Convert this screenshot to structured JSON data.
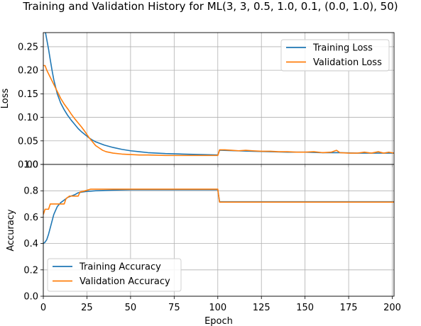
{
  "chart_data": [
    {
      "type": "line",
      "title": "Training and Validation History for ML(3, 3, 0.5, 1.0, 0.1, (0.0, 1.0), 50)",
      "xlabel": "",
      "ylabel": "Loss",
      "xlim": [
        0,
        201
      ],
      "ylim": [
        0.0,
        0.28
      ],
      "xticks": [
        0,
        25,
        50,
        75,
        100,
        125,
        150,
        175,
        200
      ],
      "yticks": [
        0.0,
        0.05,
        0.1,
        0.15,
        0.2,
        0.25
      ],
      "ytick_labels": [
        "0.00",
        "0.05",
        "0.10",
        "0.15",
        "0.20",
        "0.25"
      ],
      "grid": true,
      "legend_position": "top-right",
      "series": [
        {
          "name": "Training Loss",
          "color": "#1f77b4",
          "points": [
            [
              0,
              0.295
            ],
            [
              1,
              0.285
            ],
            [
              2,
              0.265
            ],
            [
              3,
              0.245
            ],
            [
              4,
              0.222
            ],
            [
              5,
              0.2
            ],
            [
              6,
              0.18
            ],
            [
              7,
              0.165
            ],
            [
              8,
              0.15
            ],
            [
              10,
              0.13
            ],
            [
              12,
              0.116
            ],
            [
              14,
              0.104
            ],
            [
              16,
              0.094
            ],
            [
              18,
              0.085
            ],
            [
              20,
              0.076
            ],
            [
              22,
              0.069
            ],
            [
              24,
              0.063
            ],
            [
              26,
              0.057
            ],
            [
              28,
              0.052
            ],
            [
              30,
              0.048
            ],
            [
              35,
              0.041
            ],
            [
              40,
              0.036
            ],
            [
              45,
              0.032
            ],
            [
              50,
              0.029
            ],
            [
              55,
              0.027
            ],
            [
              60,
              0.025
            ],
            [
              70,
              0.023
            ],
            [
              80,
              0.022
            ],
            [
              90,
              0.021
            ],
            [
              100,
              0.02
            ],
            [
              101,
              0.03
            ],
            [
              102,
              0.03
            ],
            [
              110,
              0.029
            ],
            [
              120,
              0.028
            ],
            [
              130,
              0.027
            ],
            [
              140,
              0.026
            ],
            [
              150,
              0.026
            ],
            [
              160,
              0.025
            ],
            [
              170,
              0.025
            ],
            [
              180,
              0.024
            ],
            [
              190,
              0.024
            ],
            [
              201,
              0.024
            ]
          ]
        },
        {
          "name": "Validation Loss",
          "color": "#ff7f0e",
          "points": [
            [
              0,
              0.21
            ],
            [
              1,
              0.21
            ],
            [
              2,
              0.2
            ],
            [
              4,
              0.185
            ],
            [
              6,
              0.17
            ],
            [
              8,
              0.155
            ],
            [
              10,
              0.14
            ],
            [
              12,
              0.128
            ],
            [
              14,
              0.118
            ],
            [
              16,
              0.107
            ],
            [
              18,
              0.097
            ],
            [
              20,
              0.088
            ],
            [
              22,
              0.079
            ],
            [
              24,
              0.069
            ],
            [
              26,
              0.058
            ],
            [
              28,
              0.049
            ],
            [
              30,
              0.04
            ],
            [
              32,
              0.035
            ],
            [
              34,
              0.03
            ],
            [
              36,
              0.027
            ],
            [
              40,
              0.024
            ],
            [
              45,
              0.022
            ],
            [
              50,
              0.021
            ],
            [
              55,
              0.02
            ],
            [
              60,
              0.02
            ],
            [
              70,
              0.019
            ],
            [
              80,
              0.019
            ],
            [
              90,
              0.019
            ],
            [
              100,
              0.019
            ],
            [
              101,
              0.031
            ],
            [
              104,
              0.031
            ],
            [
              108,
              0.03
            ],
            [
              112,
              0.029
            ],
            [
              116,
              0.03
            ],
            [
              120,
              0.029
            ],
            [
              125,
              0.028
            ],
            [
              130,
              0.028
            ],
            [
              135,
              0.027
            ],
            [
              140,
              0.027
            ],
            [
              145,
              0.026
            ],
            [
              150,
              0.026
            ],
            [
              155,
              0.027
            ],
            [
              160,
              0.025
            ],
            [
              165,
              0.026
            ],
            [
              168,
              0.03
            ],
            [
              170,
              0.025
            ],
            [
              175,
              0.024
            ],
            [
              180,
              0.024
            ],
            [
              184,
              0.026
            ],
            [
              188,
              0.024
            ],
            [
              192,
              0.027
            ],
            [
              195,
              0.024
            ],
            [
              198,
              0.026
            ],
            [
              201,
              0.024
            ]
          ]
        }
      ]
    },
    {
      "type": "line",
      "title": "",
      "xlabel": "Epoch",
      "ylabel": "Accuracy",
      "xlim": [
        0,
        201
      ],
      "ylim": [
        0.0,
        1.0
      ],
      "xticks": [
        0,
        25,
        50,
        75,
        100,
        125,
        150,
        175,
        200
      ],
      "yticks": [
        0.0,
        0.2,
        0.4,
        0.6,
        0.8,
        1.0
      ],
      "ytick_labels": [
        "0.0",
        "0.2",
        "0.4",
        "0.6",
        "0.8",
        "1.0"
      ],
      "grid": true,
      "legend_position": "bottom-left",
      "series": [
        {
          "name": "Training Accuracy",
          "color": "#1f77b4",
          "points": [
            [
              0,
              0.4
            ],
            [
              1,
              0.41
            ],
            [
              2,
              0.43
            ],
            [
              3,
              0.47
            ],
            [
              4,
              0.52
            ],
            [
              5,
              0.57
            ],
            [
              6,
              0.62
            ],
            [
              7,
              0.65
            ],
            [
              8,
              0.68
            ],
            [
              10,
              0.71
            ],
            [
              12,
              0.73
            ],
            [
              14,
              0.75
            ],
            [
              16,
              0.76
            ],
            [
              18,
              0.77
            ],
            [
              20,
              0.785
            ],
            [
              22,
              0.79
            ],
            [
              25,
              0.795
            ],
            [
              30,
              0.8
            ],
            [
              40,
              0.805
            ],
            [
              50,
              0.808
            ],
            [
              70,
              0.808
            ],
            [
              100,
              0.808
            ],
            [
              101,
              0.717
            ],
            [
              201,
              0.717
            ]
          ]
        },
        {
          "name": "Validation Accuracy",
          "color": "#ff7f0e",
          "points": [
            [
              0,
              0.62
            ],
            [
              1,
              0.66
            ],
            [
              3,
              0.66
            ],
            [
              4,
              0.7
            ],
            [
              12,
              0.7
            ],
            [
              13,
              0.74
            ],
            [
              15,
              0.76
            ],
            [
              20,
              0.76
            ],
            [
              21,
              0.79
            ],
            [
              24,
              0.8
            ],
            [
              27,
              0.812
            ],
            [
              50,
              0.812
            ],
            [
              75,
              0.812
            ],
            [
              100,
              0.812
            ],
            [
              101,
              0.714
            ],
            [
              201,
              0.714
            ]
          ]
        }
      ]
    }
  ]
}
